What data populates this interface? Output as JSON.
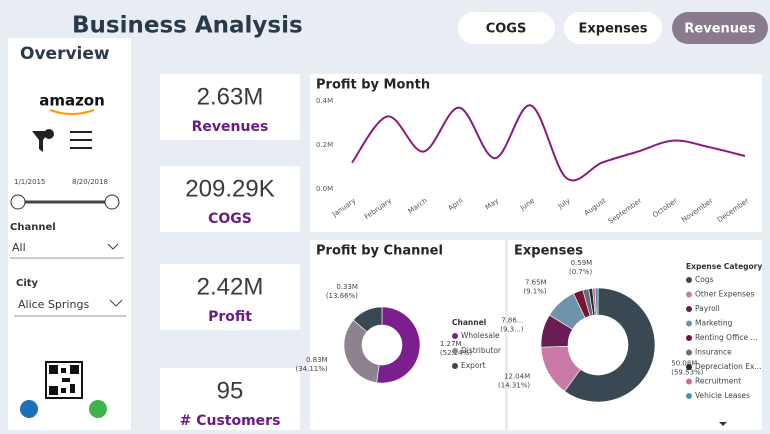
{
  "header": {
    "title": "Business Analysis",
    "overview": "Overview",
    "buttons": [
      "COGS",
      "Expenses",
      "Revenues"
    ]
  },
  "sidebar": {
    "brand": "amazon",
    "date_start": "1/1/2015",
    "date_end": "8/20/2018",
    "channel_label": "Channel",
    "channel_value": "All",
    "city_label": "City",
    "city_value": "Alice Springs"
  },
  "kpis": [
    {
      "value": "2.63M",
      "label": "Revenues"
    },
    {
      "value": "209.29K",
      "label": "COGS"
    },
    {
      "value": "2.42M",
      "label": "Profit"
    },
    {
      "value": "95",
      "label": "# Customers"
    }
  ],
  "chart_data": [
    {
      "type": "line",
      "title": "Profit by Month",
      "categories": [
        "January",
        "February",
        "March",
        "April",
        "May",
        "June",
        "July",
        "August",
        "September",
        "October",
        "November",
        "December"
      ],
      "values": [
        0.12,
        0.33,
        0.17,
        0.37,
        0.14,
        0.38,
        0.05,
        0.12,
        0.17,
        0.22,
        0.19,
        0.15
      ],
      "color": "#8b1a7f",
      "ylim": [
        0,
        0.4
      ],
      "yticks": [
        {
          "value": 0,
          "label": "0.0M"
        },
        {
          "value": 0.2,
          "label": "0.2M"
        },
        {
          "value": 0.4,
          "label": "0.4M"
        }
      ],
      "grid": false
    },
    {
      "type": "donut",
      "title": "Profit by Channel",
      "legend_title": "Channel",
      "categories": [
        "Wholesale",
        "Distributor",
        "Export"
      ],
      "values": [
        1.27,
        0.83,
        0.33
      ],
      "value_labels": [
        "1.27M",
        "0.83M",
        "0.33M"
      ],
      "percents": [
        52.24,
        34.11,
        13.66
      ],
      "percent_labels": [
        "(52.24%)",
        "(34.11%)",
        "(13.66%)"
      ],
      "colors": [
        "#7b1f8e",
        "#8e828e",
        "#3a4853"
      ]
    },
    {
      "type": "donut",
      "title": "Expenses",
      "legend_title": "Expense Category",
      "categories": [
        "Cogs",
        "Other Expenses",
        "Payroll",
        "Marketing",
        "Renting Office ...",
        "Insurance",
        "Depreciation Ex...",
        "Recruitment",
        "Vehicle Leases"
      ],
      "values": [
        50.08,
        12.04,
        7.86,
        7.65,
        2.3,
        1.4,
        0.9,
        0.59,
        0.7
      ],
      "value_labels": [
        "50.08M",
        "12.04M",
        "7.86...",
        "7.65M",
        null,
        null,
        null,
        "0.59M",
        null
      ],
      "percents": [
        59.53,
        14.31,
        9.3,
        9.1,
        null,
        null,
        null,
        0.7,
        null
      ],
      "percent_labels": [
        "(59.53%)",
        "(14.31%)",
        "(9.3...)",
        "(9.1%)",
        null,
        null,
        null,
        "(0.7%)",
        null
      ],
      "colors": [
        "#3a4853",
        "#c97aa6",
        "#6a1d52",
        "#6f93ad",
        "#7b1232",
        "#5f6f7e",
        "#2b2b33",
        "#d06a8a",
        "#4a8fb0"
      ]
    }
  ]
}
